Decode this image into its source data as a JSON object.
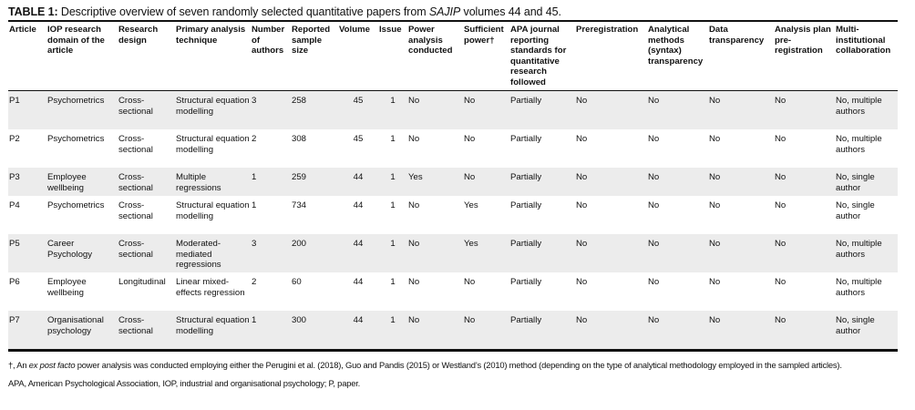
{
  "title": {
    "label": "TABLE 1:",
    "text_before": " Descriptive overview of seven randomly selected quantitative papers from ",
    "journal": "SAJIP",
    "text_after": " volumes 44 and 45."
  },
  "headers": [
    "Article",
    "IOP research domain of the article",
    "Research design",
    "Primary analysis technique",
    "Number of authors",
    "Reported sample size",
    "Volume",
    "Issue",
    "Power analysis conducted",
    "Sufficient power†",
    "APA journal reporting standards for quantitative research followed",
    "Preregistration",
    "Analytical methods (syntax) transparency",
    "Data transparency",
    "Analysis plan pre-registration",
    "Multi-institutional collaboration"
  ],
  "rows": [
    [
      "P1",
      "Psychometrics",
      "Cross-sectional",
      "Structural equation modelling",
      "3",
      "258",
      "45",
      "1",
      "No",
      "No",
      "Partially",
      "No",
      "No",
      "No",
      "No",
      "No, multiple authors"
    ],
    [
      "P2",
      "Psychometrics",
      "Cross-sectional",
      "Structural equation modelling",
      "2",
      "308",
      "45",
      "1",
      "No",
      "No",
      "Partially",
      "No",
      "No",
      "No",
      "No",
      "No, multiple authors"
    ],
    [
      "P3",
      "Employee wellbeing",
      "Cross-sectional",
      "Multiple regressions",
      "1",
      "259",
      "44",
      "1",
      "Yes",
      "No",
      "Partially",
      "No",
      "No",
      "No",
      "No",
      "No, single author"
    ],
    [
      "P4",
      "Psychometrics",
      "Cross-sectional",
      "Structural equation modelling",
      "1",
      "734",
      "44",
      "1",
      "No",
      "Yes",
      "Partially",
      "No",
      "No",
      "No",
      "No",
      "No, single author"
    ],
    [
      "P5",
      "Career Psychology",
      "Cross-sectional",
      "Moderated-mediated regressions",
      "3",
      "200",
      "44",
      "1",
      "No",
      "Yes",
      "Partially",
      "No",
      "No",
      "No",
      "No",
      "No, multiple authors"
    ],
    [
      "P6",
      "Employee wellbeing",
      "Longitudinal",
      "Linear mixed-effects regression",
      "2",
      "60",
      "44",
      "1",
      "No",
      "No",
      "Partially",
      "No",
      "No",
      "No",
      "No",
      "No, multiple authors"
    ],
    [
      "P7",
      "Organisational psychology",
      "Cross-sectional",
      "Structural equation modelling",
      "1",
      "300",
      "44",
      "1",
      "No",
      "No",
      "Partially",
      "No",
      "No",
      "No",
      "No",
      "No, single author"
    ]
  ],
  "notes": {
    "dagger_before": "†, An ",
    "dagger_italic": "ex post facto",
    "dagger_after": " power analysis was conducted employing either the Perugini et al. (2018), Guo and Pandis (2015) or Westland’s (2010) method (depending on the type of analytical methodology employed in the sampled articles).",
    "abbreviations": "APA, American Psychological Association, IOP, industrial and organisational psychology; P, paper."
  }
}
